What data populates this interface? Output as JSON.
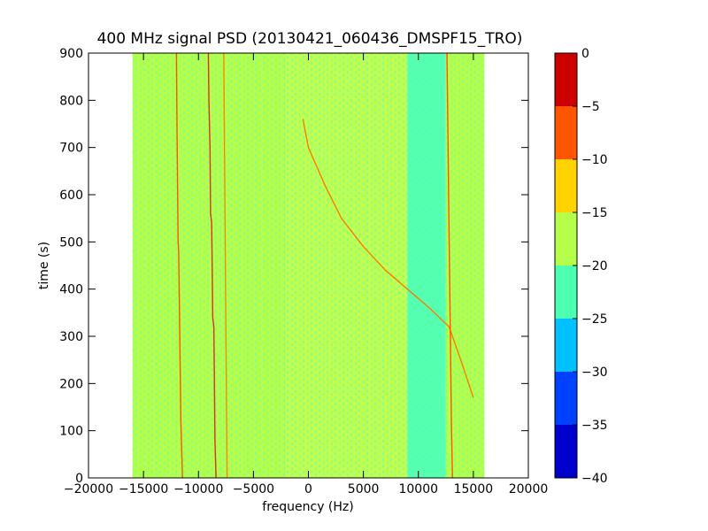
{
  "chart_data": {
    "type": "heatmap",
    "title": "400 MHz signal PSD (20130421_060436_DMSPF15_TRO)",
    "xlabel": "frequency (Hz)",
    "ylabel": "time (s)",
    "xlim": [
      -20000,
      20000
    ],
    "ylim": [
      0,
      900
    ],
    "xticks": [
      -20000,
      -15000,
      -10000,
      -5000,
      0,
      5000,
      10000,
      15000,
      20000
    ],
    "yticks": [
      0,
      100,
      200,
      300,
      400,
      500,
      600,
      700,
      800,
      900
    ],
    "data_extent": {
      "x": [
        -16000,
        16000
      ],
      "y": [
        0,
        900
      ]
    },
    "colorbar": {
      "ticks": [
        0,
        -5,
        -10,
        -15,
        -20,
        -25,
        -30,
        -35,
        -40
      ],
      "range": [
        -40,
        0
      ],
      "levels": [
        {
          "from": -40,
          "to": -35,
          "color": "#0000cc"
        },
        {
          "from": -35,
          "to": -30,
          "color": "#0040ff"
        },
        {
          "from": -30,
          "to": -25,
          "color": "#00c0ff"
        },
        {
          "from": -25,
          "to": -20,
          "color": "#4dffb0"
        },
        {
          "from": -20,
          "to": -15,
          "color": "#b5ff4a"
        },
        {
          "from": -15,
          "to": -10,
          "color": "#ffd200"
        },
        {
          "from": -10,
          "to": -5,
          "color": "#ff5500"
        },
        {
          "from": -5,
          "to": 0,
          "color": "#cc0000"
        }
      ]
    },
    "background": [
      {
        "x": [
          -16000,
          -2000
        ],
        "value": -17,
        "color": "#b5ff4a"
      },
      {
        "x": [
          -2000,
          9000
        ],
        "value": -19,
        "color": "#bfff4f"
      },
      {
        "x": [
          9000,
          12500
        ],
        "value": -21,
        "color": "#55ffb0"
      },
      {
        "x": [
          12500,
          16000
        ],
        "value": -18,
        "color": "#b5ff4a"
      }
    ],
    "signal_traces": [
      {
        "name": "",
        "color": "#ff5500",
        "points": [
          [
            -12000,
            900
          ],
          [
            -11950,
            740
          ],
          [
            -11850,
            500
          ],
          [
            -11800,
            480
          ],
          [
            -11700,
            300
          ],
          [
            -11600,
            120
          ],
          [
            -11450,
            0
          ]
        ]
      },
      {
        "name": "",
        "color": "#e0301a",
        "points": [
          [
            -9100,
            900
          ],
          [
            -9050,
            800
          ],
          [
            -8950,
            700
          ],
          [
            -8900,
            560
          ],
          [
            -8800,
            540
          ],
          [
            -8700,
            340
          ],
          [
            -8600,
            320
          ],
          [
            -8500,
            80
          ],
          [
            -8400,
            0
          ]
        ]
      },
      {
        "name": "",
        "color": "#ff8800",
        "points": [
          [
            -7700,
            900
          ],
          [
            -7600,
            600
          ],
          [
            -7500,
            300
          ],
          [
            -7400,
            0
          ]
        ]
      },
      {
        "name": "",
        "color": "#ff7a00",
        "points": [
          [
            -500,
            760
          ],
          [
            0,
            700
          ],
          [
            1500,
            620
          ],
          [
            3000,
            550
          ],
          [
            5000,
            490
          ],
          [
            7000,
            440
          ],
          [
            9000,
            400
          ],
          [
            11000,
            360
          ],
          [
            12800,
            320
          ],
          [
            14000,
            240
          ],
          [
            15000,
            170
          ]
        ]
      },
      {
        "name": "",
        "color": "#ff5500",
        "points": [
          [
            12600,
            900
          ],
          [
            12700,
            700
          ],
          [
            12800,
            500
          ],
          [
            12900,
            315
          ],
          [
            13000,
            120
          ],
          [
            13100,
            0
          ]
        ]
      }
    ]
  }
}
